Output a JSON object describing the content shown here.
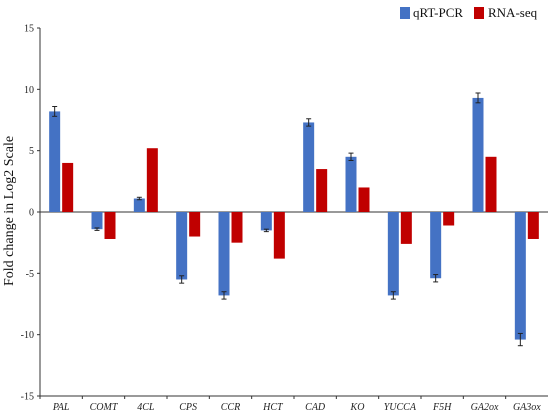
{
  "chart_data": {
    "type": "bar",
    "ylabel": "Fold change in Log2 Scale",
    "ylim": [
      -15,
      15
    ],
    "yticks": [
      15,
      10,
      5,
      0,
      -5,
      -10,
      -15
    ],
    "legend_position": "top-right",
    "grid": false,
    "categories": [
      "PAL",
      "COMT",
      "4CL",
      "CPS",
      "CCR",
      "HCT",
      "CAD",
      "KO",
      "YUCCA",
      "F5H",
      "GA2ox",
      "GA3ox"
    ],
    "series": [
      {
        "name": "qRT-PCR",
        "color": "#4472C4",
        "values": [
          8.2,
          -1.4,
          1.1,
          -5.5,
          -6.8,
          -1.5,
          7.3,
          4.5,
          -6.8,
          -5.4,
          9.3,
          -10.4
        ],
        "errors": [
          0.4,
          0.1,
          0.1,
          0.3,
          0.3,
          0.1,
          0.3,
          0.3,
          0.3,
          0.3,
          0.4,
          0.5
        ]
      },
      {
        "name": "RNA-seq",
        "color": "#C00000",
        "values": [
          4.0,
          -2.2,
          5.2,
          -2.0,
          -2.5,
          -3.8,
          3.5,
          2.0,
          -2.6,
          -1.1,
          4.5,
          -2.2
        ]
      }
    ]
  }
}
